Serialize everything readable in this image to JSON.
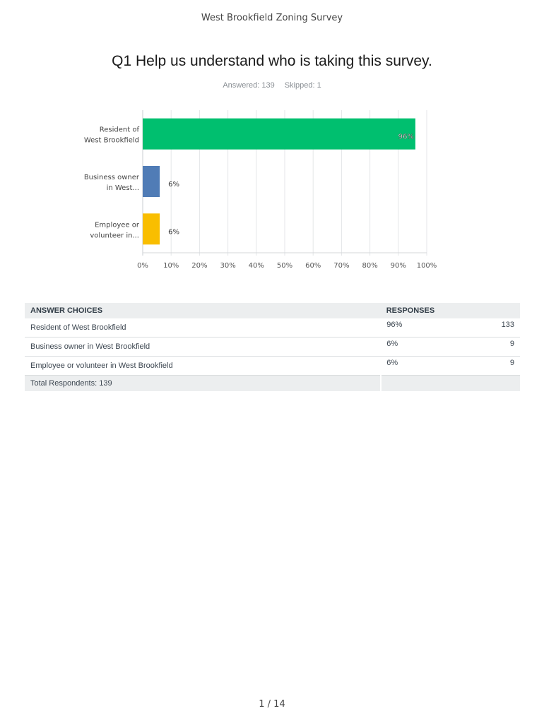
{
  "header": {
    "title": "West Brookfield Zoning Survey"
  },
  "question": {
    "title": "Q1 Help us understand who is taking this survey.",
    "answered": "Answered: 139",
    "skipped": "Skipped: 1"
  },
  "chart_data": {
    "type": "bar",
    "orientation": "horizontal",
    "categories": [
      [
        "Resident of",
        "West Brookfield"
      ],
      [
        "Business owner",
        "in West..."
      ],
      [
        "Employee or",
        "volunteer in..."
      ]
    ],
    "values": [
      96,
      6,
      6
    ],
    "value_labels": [
      "96%",
      "6%",
      "6%"
    ],
    "colors": [
      "#00bf6f",
      "#507cb6",
      "#f9be00"
    ],
    "xlim": [
      0,
      100
    ],
    "x_ticks": [
      0,
      10,
      20,
      30,
      40,
      50,
      60,
      70,
      80,
      90,
      100
    ],
    "x_tick_labels": [
      "0%",
      "10%",
      "20%",
      "30%",
      "40%",
      "50%",
      "60%",
      "70%",
      "80%",
      "90%",
      "100%"
    ],
    "grid": true
  },
  "table": {
    "headers": {
      "choice": "ANSWER CHOICES",
      "responses": "RESPONSES"
    },
    "rows": [
      {
        "choice": "Resident of West Brookfield",
        "percent": "96%",
        "count": "133"
      },
      {
        "choice": "Business owner in West Brookfield",
        "percent": "6%",
        "count": "9"
      },
      {
        "choice": "Employee or volunteer in West Brookfield",
        "percent": "6%",
        "count": "9"
      }
    ],
    "total": "Total Respondents: 139"
  },
  "footer": {
    "page": "1 / 14"
  }
}
